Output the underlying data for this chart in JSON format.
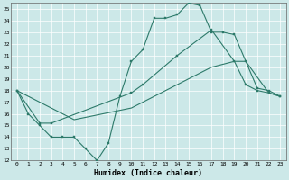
{
  "xlabel": "Humidex (Indice chaleur)",
  "xlim": [
    -0.5,
    23.5
  ],
  "ylim": [
    12,
    25.5
  ],
  "xticks": [
    0,
    1,
    2,
    3,
    4,
    5,
    6,
    7,
    8,
    9,
    10,
    11,
    12,
    13,
    14,
    15,
    16,
    17,
    18,
    19,
    20,
    21,
    22,
    23
  ],
  "yticks": [
    12,
    13,
    14,
    15,
    16,
    17,
    18,
    19,
    20,
    21,
    22,
    23,
    24,
    25
  ],
  "color": "#2d7a6a",
  "bg_color": "#cce8e8",
  "grid_color": "#ffffff",
  "line1_x": [
    0,
    1,
    2,
    3,
    4,
    5,
    6,
    7,
    8,
    9,
    10,
    11,
    12,
    13,
    14,
    15,
    16,
    17,
    18,
    19,
    20,
    21,
    22,
    23
  ],
  "line1_y": [
    18.0,
    16.0,
    15.0,
    14.0,
    14.0,
    14.0,
    13.0,
    12.0,
    13.5,
    17.5,
    20.5,
    21.5,
    24.2,
    24.2,
    24.5,
    25.5,
    25.3,
    23.0,
    23.0,
    22.8,
    20.5,
    18.2,
    18.0,
    17.5
  ],
  "line2_x": [
    0,
    2,
    3,
    10,
    11,
    14,
    17,
    19,
    20,
    21,
    22,
    23
  ],
  "line2_y": [
    18.0,
    15.2,
    15.2,
    17.8,
    18.5,
    21.0,
    23.2,
    20.5,
    18.5,
    18.0,
    17.8,
    17.5
  ],
  "line3_x": [
    0,
    5,
    10,
    14,
    17,
    19,
    20,
    22,
    23
  ],
  "line3_y": [
    18.0,
    15.5,
    16.5,
    18.5,
    20.0,
    20.5,
    20.5,
    17.8,
    17.5
  ],
  "xlabel_fontsize": 6,
  "tick_fontsize": 4.5
}
